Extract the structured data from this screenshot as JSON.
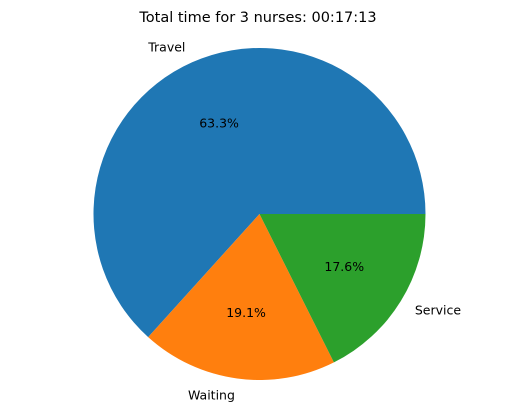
{
  "chart_data": {
    "type": "pie",
    "title": "Total time for 3 nurses: 00:17:13",
    "start_angle": "0 degrees, counterclockwise",
    "slices": [
      {
        "label": "Travel",
        "value": 63.3,
        "pct_label": "63.3%",
        "color": "#1f77b4"
      },
      {
        "label": "Waiting",
        "value": 19.1,
        "pct_label": "19.1%",
        "color": "#ff7f0e"
      },
      {
        "label": "Service",
        "value": 17.6,
        "pct_label": "17.6%",
        "color": "#2ca02c"
      }
    ]
  }
}
